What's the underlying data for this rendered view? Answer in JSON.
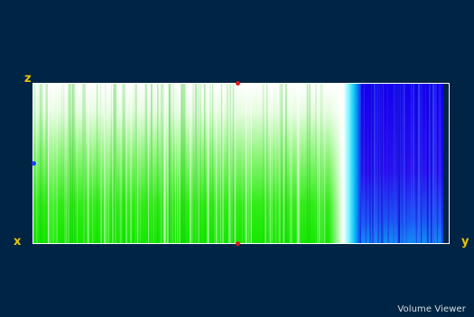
{
  "viewer": {
    "title": "Volume Viewer",
    "axes": {
      "z": "z",
      "x": "x",
      "y": "y"
    }
  },
  "colors": {
    "background": "#002544",
    "axis_label": "#e8c30b",
    "frame": "#ffffff",
    "green_band": "#15f000",
    "cyan_band": "#00d8ff",
    "blue_band": "#2200ee",
    "slice_marker": "#e01a1a",
    "plane_marker": "#1f3bff"
  }
}
